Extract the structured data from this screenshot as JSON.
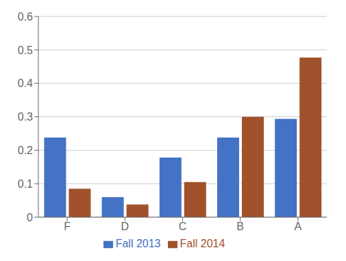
{
  "chart_data": {
    "type": "bar",
    "categories": [
      "F",
      "D",
      "C",
      "B",
      "A"
    ],
    "series": [
      {
        "name": "Fall 2013",
        "color": "#4472C4",
        "values": [
          0.238,
          0.06,
          0.178,
          0.238,
          0.294
        ]
      },
      {
        "name": "Fall 2014",
        "color": "#A0522D",
        "values": [
          0.085,
          0.038,
          0.105,
          0.3,
          0.477
        ]
      }
    ],
    "ylim": [
      0,
      0.6
    ],
    "yticks": [
      0,
      0.1,
      0.2,
      0.3,
      0.4,
      0.5,
      0.6
    ],
    "grid": true,
    "legend": "bottom"
  }
}
